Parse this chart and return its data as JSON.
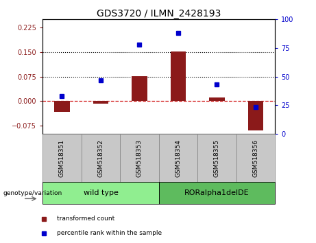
{
  "title": "GDS3720 / ILMN_2428193",
  "samples": [
    "GSM518351",
    "GSM518352",
    "GSM518353",
    "GSM518354",
    "GSM518355",
    "GSM518356"
  ],
  "bar_values": [
    -0.033,
    -0.008,
    0.077,
    0.152,
    0.01,
    -0.09
  ],
  "dot_values_pct": [
    33,
    47,
    78,
    88,
    43,
    23
  ],
  "ylim_left": [
    -0.1,
    0.25
  ],
  "ylim_right": [
    0,
    100
  ],
  "yticks_left": [
    -0.075,
    0,
    0.075,
    0.15,
    0.225
  ],
  "yticks_right": [
    0,
    25,
    50,
    75,
    100
  ],
  "hlines": [
    0.075,
    0.15
  ],
  "bar_color": "#8B1A1A",
  "dot_color": "#0000CC",
  "zero_line_color": "#CC0000",
  "hline_color": "#000000",
  "group1_label": "wild type",
  "group2_label": "RORalpha1delDE",
  "group1_color": "#90EE90",
  "group2_color": "#5EBB5E",
  "group1_indices": [
    0,
    1,
    2
  ],
  "group2_indices": [
    3,
    4,
    5
  ],
  "xlabel_label": "genotype/variation",
  "legend_bar": "transformed count",
  "legend_dot": "percentile rank within the sample",
  "title_fontsize": 10,
  "tick_fontsize": 7,
  "label_fontsize": 7,
  "bar_width": 0.4,
  "sample_box_color": "#C8C8C8",
  "sample_box_edge": "#888888"
}
